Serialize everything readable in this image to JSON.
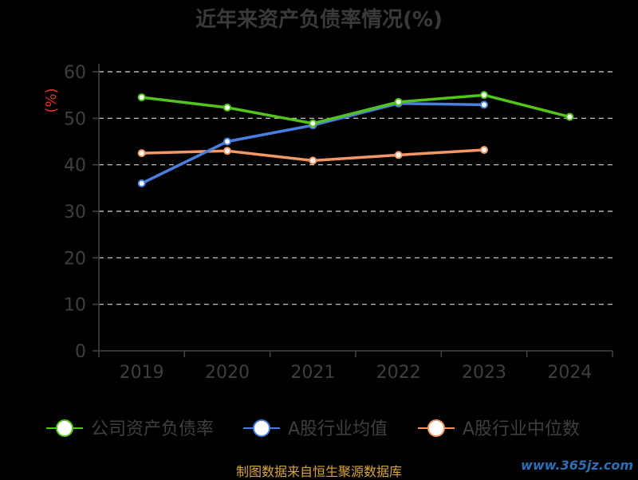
{
  "chart_data": {
    "type": "line",
    "title": "近年来资产负债率情况(%)",
    "ylabel": "(%)",
    "categories": [
      "2019",
      "2020",
      "2021",
      "2022",
      "2023",
      "2024"
    ],
    "ylim": [
      0,
      60
    ],
    "yticks": [
      0,
      10,
      20,
      30,
      40,
      50,
      60
    ],
    "grid": true,
    "legend_position": "bottom",
    "series": [
      {
        "name": "公司资产负债率",
        "color": "#52c41a",
        "values": [
          54.5,
          52.3,
          48.9,
          53.5,
          55.0,
          50.3
        ]
      },
      {
        "name": "A股行业均值",
        "color": "#4a7fe0",
        "values": [
          36.0,
          45.0,
          48.5,
          53.2,
          52.9,
          null
        ]
      },
      {
        "name": "A股行业中位数",
        "color": "#f39865",
        "values": [
          42.5,
          43.0,
          40.9,
          42.1,
          43.2,
          null
        ]
      }
    ]
  },
  "source": "制图数据来自恒生聚源数据库",
  "watermark": "www.365jz.com"
}
